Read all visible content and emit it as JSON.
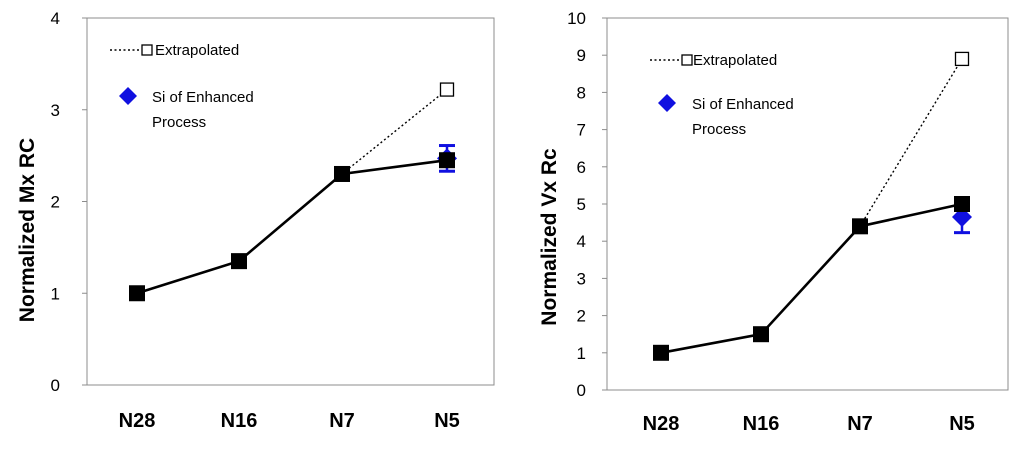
{
  "chart_data": [
    {
      "type": "line",
      "title": "",
      "xlabel": "",
      "ylabel": "Normalized  Mx RC",
      "categories": [
        "N28",
        "N16",
        "N7",
        "N5"
      ],
      "ylim": [
        0,
        4
      ],
      "yticks": [
        0,
        1,
        2,
        3,
        4
      ],
      "grid": false,
      "legend": "top-left",
      "series": [
        {
          "values": [
            1.0,
            1.35,
            2.3,
            2.45
          ],
          "marker": "square-filled",
          "color": "#000000"
        },
        {
          "name": "Extrapolated",
          "x": [
            "N7",
            "N5"
          ],
          "values": [
            2.3,
            3.22
          ],
          "marker": "square-open",
          "line": "dotted",
          "color": "#000000"
        },
        {
          "name": "Si of Enhanced Process",
          "x": [
            "N5"
          ],
          "values": [
            2.47
          ],
          "error": [
            0.14
          ],
          "marker": "diamond",
          "color": "#1010e0"
        }
      ],
      "legend_entries": [
        {
          "label": "Extrapolated",
          "line1": "Extrapolated"
        },
        {
          "label": "Si of Enhanced Process",
          "line1": "Si of Enhanced",
          "line2": "Process"
        }
      ]
    },
    {
      "type": "line",
      "title": "",
      "xlabel": "",
      "ylabel": "Normalized   Vx  Rc",
      "categories": [
        "N28",
        "N16",
        "N7",
        "N5"
      ],
      "ylim": [
        0,
        10
      ],
      "yticks": [
        0,
        1,
        2,
        3,
        4,
        5,
        6,
        7,
        8,
        9,
        10
      ],
      "grid": false,
      "legend": "top-left",
      "series": [
        {
          "values": [
            1.0,
            1.5,
            4.4,
            5.0
          ],
          "marker": "square-filled",
          "color": "#000000"
        },
        {
          "name": "Extrapolated",
          "x": [
            "N7",
            "N5"
          ],
          "values": [
            4.4,
            8.9
          ],
          "marker": "square-open",
          "line": "dotted",
          "color": "#000000"
        },
        {
          "name": "Si of Enhanced Process",
          "x": [
            "N5"
          ],
          "values": [
            4.65
          ],
          "error": [
            0.42
          ],
          "marker": "diamond",
          "color": "#1010e0"
        }
      ],
      "legend_entries": [
        {
          "label": "Extrapolated",
          "line1": "Extrapolated"
        },
        {
          "label": "Si of Enhanced Process",
          "line1": "Si of Enhanced",
          "line2": "Process"
        }
      ]
    }
  ]
}
